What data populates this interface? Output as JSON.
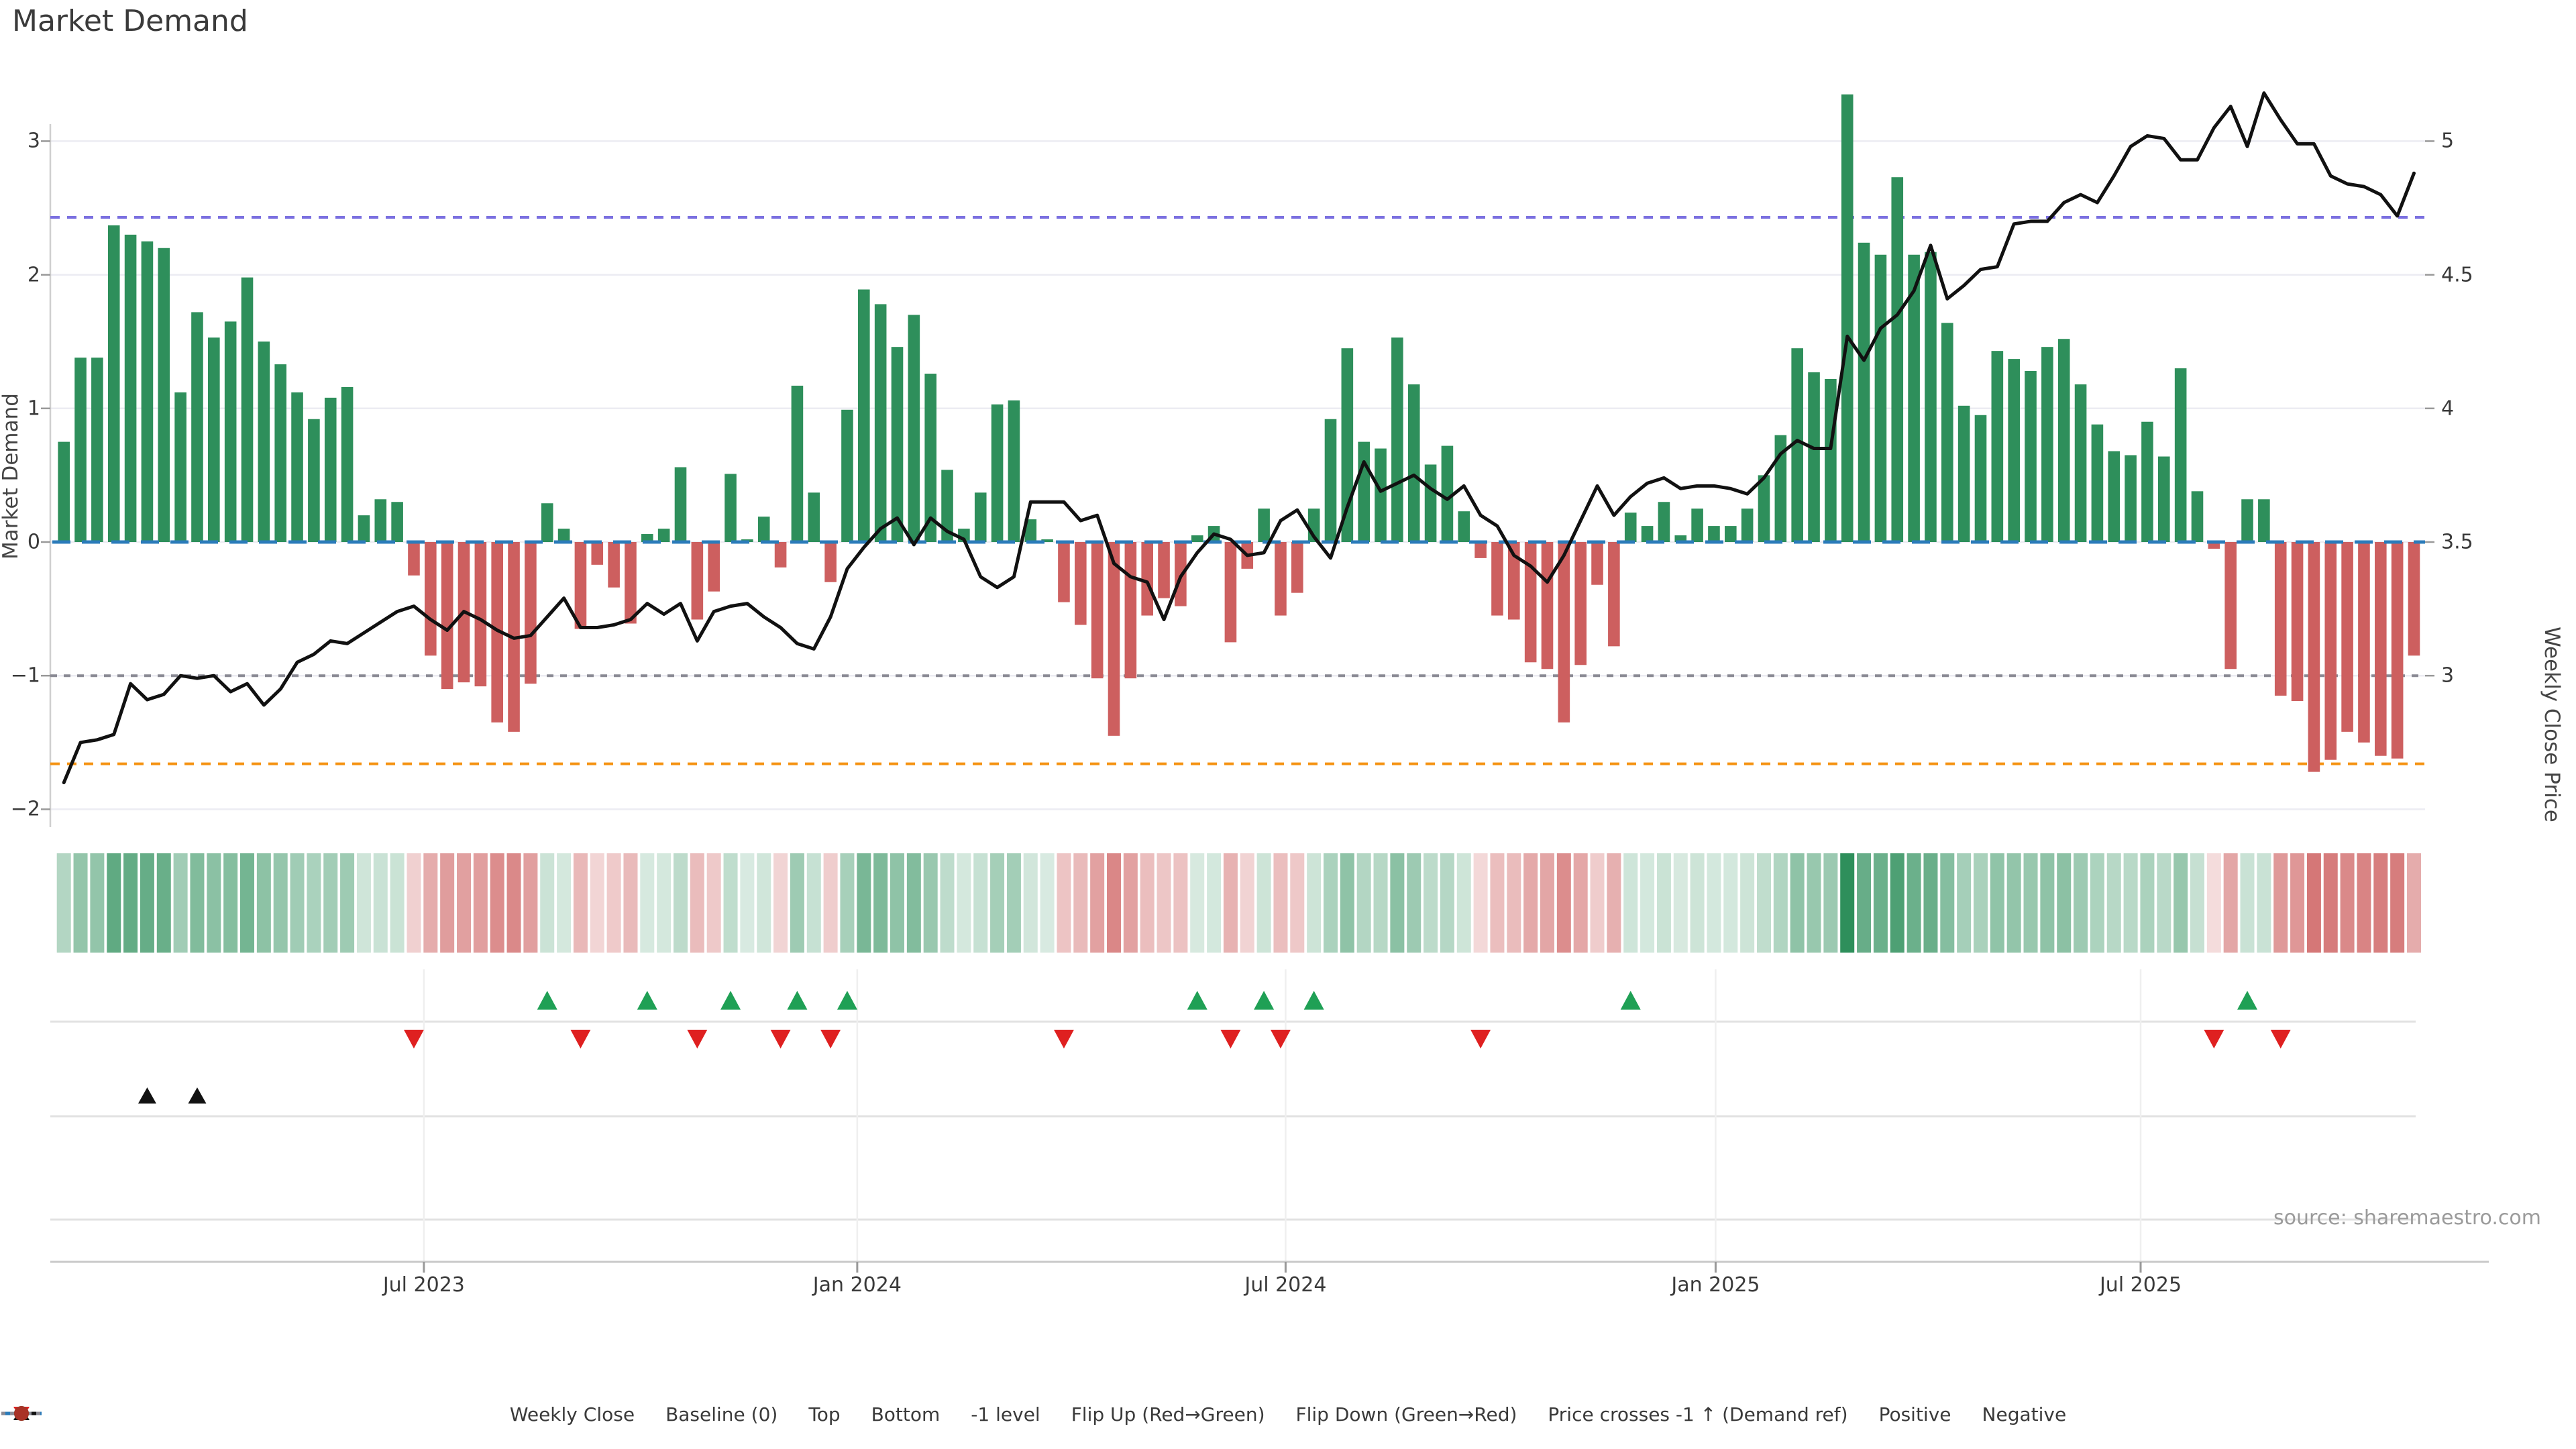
{
  "title": "Market Demand",
  "source_note": "source: sharemaestro.com",
  "colors": {
    "positive_bar": "#2e8f5b",
    "negative_bar": "#cd5f5f",
    "price_line": "#111111",
    "baseline": "#2b7bba",
    "top_line": "#7b70e0",
    "bottom_line": "#f59312",
    "minus_one_line": "#8a8a94",
    "flip_up_marker": "#1fa055",
    "flip_down_marker": "#df2020",
    "price_cross_marker": "#111111",
    "positive_dot": "#1e8449",
    "negative_dot": "#a93226",
    "grid": "#ececf2",
    "axis": "#cfcfcf",
    "tick": "#999999"
  },
  "legend": {
    "items": [
      {
        "label": "Weekly Close",
        "swatch": "line",
        "dash": "solid",
        "color": "#111111"
      },
      {
        "label": "Baseline (0)",
        "swatch": "line",
        "dash": "dashed",
        "color": "#2b7bba"
      },
      {
        "label": "Top",
        "swatch": "line",
        "dash": "dotted",
        "color": "#7b70e0"
      },
      {
        "label": "Bottom",
        "swatch": "line",
        "dash": "dotted",
        "color": "#f59312"
      },
      {
        "label": "-1 level",
        "swatch": "line",
        "dash": "dotted",
        "color": "#8a8a94"
      },
      {
        "label": "Flip Up (Red→Green)",
        "swatch": "triangle-up",
        "color": "#1fa055"
      },
      {
        "label": "Flip Down (Green→Red)",
        "swatch": "triangle-down",
        "color": "#df2020"
      },
      {
        "label": "Price crosses -1 ↑ (Demand ref)",
        "swatch": "triangle-up",
        "color": "#111111"
      },
      {
        "label": "Positive",
        "swatch": "dot",
        "color": "#1e8449"
      },
      {
        "label": "Negative",
        "swatch": "dot",
        "color": "#a93226"
      }
    ]
  },
  "chart_data": {
    "type": [
      "bar",
      "line",
      "heatmap"
    ],
    "title": "Market Demand",
    "ylabel": "Market Demand",
    "ylabel_right": "Weekly Close Price",
    "n_weeks": 142,
    "ylim_demand": [
      -2.13,
      3.13
    ],
    "ylim_price": [
      2.43,
      5.06
    ],
    "grid": "horizontal",
    "legend_position": "bottom-center",
    "y_ticks_left": [
      {
        "label": "3",
        "value": 3
      },
      {
        "label": "2",
        "value": 2
      },
      {
        "label": "1",
        "value": 1
      },
      {
        "label": "0",
        "value": 0
      },
      {
        "label": "−1",
        "value": -1
      },
      {
        "label": "−2",
        "value": -2
      }
    ],
    "y_ticks_right": [
      {
        "label": "5",
        "value": 5
      },
      {
        "label": "4.5",
        "value": 4.5
      },
      {
        "label": "4",
        "value": 4
      },
      {
        "label": "3.5",
        "value": 3.5
      },
      {
        "label": "3",
        "value": 3
      }
    ],
    "x_ticks": [
      {
        "label": "Jul 2023",
        "week": 21.6
      },
      {
        "label": "Jan 2024",
        "week": 47.6
      },
      {
        "label": "Jul 2024",
        "week": 73.3
      },
      {
        "label": "Jan 2025",
        "week": 99.1
      },
      {
        "label": "Jul 2025",
        "week": 124.6
      }
    ],
    "reference_lines": {
      "baseline": 0,
      "top": 2.43,
      "bottom": -1.66,
      "minus_one": -1
    },
    "series": [
      {
        "name": "Market Demand",
        "axis": "left",
        "values": [
          0.75,
          1.38,
          1.38,
          2.37,
          2.3,
          2.25,
          2.2,
          1.12,
          1.72,
          1.53,
          1.65,
          1.98,
          1.5,
          1.33,
          1.12,
          0.92,
          1.08,
          1.16,
          0.2,
          0.32,
          0.3,
          -0.25,
          -0.85,
          -1.1,
          -1.05,
          -1.08,
          -1.35,
          -1.42,
          -1.06,
          0.29,
          0.1,
          -0.65,
          -0.17,
          -0.34,
          -0.61,
          0.06,
          0.1,
          0.56,
          -0.58,
          -0.37,
          0.51,
          0.02,
          0.19,
          -0.19,
          1.17,
          0.37,
          -0.3,
          0.99,
          1.89,
          1.78,
          1.46,
          1.7,
          1.26,
          0.54,
          0.1,
          0.37,
          1.03,
          1.06,
          0.17,
          0.02,
          -0.45,
          -0.62,
          -1.02,
          -1.45,
          -1.02,
          -0.55,
          -0.42,
          -0.48,
          0.05,
          0.12,
          -0.75,
          -0.2,
          0.25,
          -0.55,
          -0.38,
          0.25,
          0.92,
          1.45,
          0.75,
          0.7,
          1.53,
          1.18,
          0.58,
          0.72,
          0.23,
          -0.12,
          -0.55,
          -0.58,
          -0.9,
          -0.95,
          -1.35,
          -0.92,
          -0.32,
          -0.78,
          0.22,
          0.12,
          0.3,
          0.05,
          0.25,
          0.12,
          0.12,
          0.25,
          0.5,
          0.8,
          1.45,
          1.27,
          1.22,
          3.35,
          2.24,
          2.15,
          2.73,
          2.15,
          2.17,
          1.64,
          1.02,
          0.95,
          1.43,
          1.37,
          1.28,
          1.46,
          1.52,
          1.18,
          0.88,
          0.68,
          0.65,
          0.9,
          0.64,
          1.3,
          0.38,
          -0.05,
          -0.95,
          0.32,
          0.32,
          -1.15,
          -1.19,
          -1.72,
          -1.63,
          -1.42,
          -1.5,
          -1.6,
          -1.62,
          -0.85
        ]
      },
      {
        "name": "Weekly Close",
        "axis": "right",
        "values": [
          2.6,
          2.75,
          2.76,
          2.78,
          2.97,
          2.91,
          2.93,
          3.0,
          2.99,
          3.0,
          2.94,
          2.97,
          2.89,
          2.95,
          3.05,
          3.08,
          3.13,
          3.12,
          3.16,
          3.2,
          3.24,
          3.26,
          3.21,
          3.17,
          3.24,
          3.21,
          3.17,
          3.14,
          3.15,
          3.22,
          3.29,
          3.18,
          3.18,
          3.19,
          3.21,
          3.27,
          3.23,
          3.27,
          3.13,
          3.24,
          3.26,
          3.27,
          3.22,
          3.18,
          3.12,
          3.1,
          3.22,
          3.4,
          3.48,
          3.55,
          3.59,
          3.49,
          3.59,
          3.54,
          3.51,
          3.37,
          3.33,
          3.37,
          3.65,
          3.65,
          3.65,
          3.58,
          3.6,
          3.42,
          3.37,
          3.35,
          3.21,
          3.37,
          3.46,
          3.53,
          3.51,
          3.45,
          3.46,
          3.58,
          3.62,
          3.52,
          3.44,
          3.63,
          3.8,
          3.69,
          3.72,
          3.75,
          3.7,
          3.66,
          3.71,
          3.6,
          3.56,
          3.45,
          3.41,
          3.35,
          3.45,
          3.58,
          3.71,
          3.6,
          3.67,
          3.72,
          3.74,
          3.7,
          3.71,
          3.71,
          3.7,
          3.68,
          3.74,
          3.83,
          3.88,
          3.85,
          3.85,
          4.27,
          4.18,
          4.3,
          4.35,
          4.44,
          4.61,
          4.41,
          4.46,
          4.52,
          4.53,
          4.69,
          4.7,
          4.7,
          4.77,
          4.8,
          4.77,
          4.87,
          4.98,
          5.02,
          5.01,
          4.93,
          4.93,
          5.05,
          5.13,
          4.98,
          5.18,
          5.08,
          4.99,
          4.99,
          4.87,
          4.84,
          4.83,
          4.8,
          4.72,
          4.88
        ]
      }
    ],
    "heatmap_strip": {
      "description": "one cell per week, shade of green for positive demand, shade of red for negative demand",
      "source_series": "Market Demand"
    },
    "markers": {
      "flip_up": {
        "label": "Flip Up (Red→Green)",
        "weeks": [
          29,
          35,
          40,
          44,
          47,
          68,
          72,
          75,
          94,
          131
        ]
      },
      "flip_down": {
        "label": "Flip Down (Green→Red)",
        "weeks": [
          21,
          31,
          38,
          43,
          46,
          60,
          70,
          73,
          85,
          129,
          133
        ]
      },
      "price_cross": {
        "label": "Price crosses -1 ↑ (Demand ref)",
        "weeks": [
          5,
          8
        ]
      }
    }
  }
}
